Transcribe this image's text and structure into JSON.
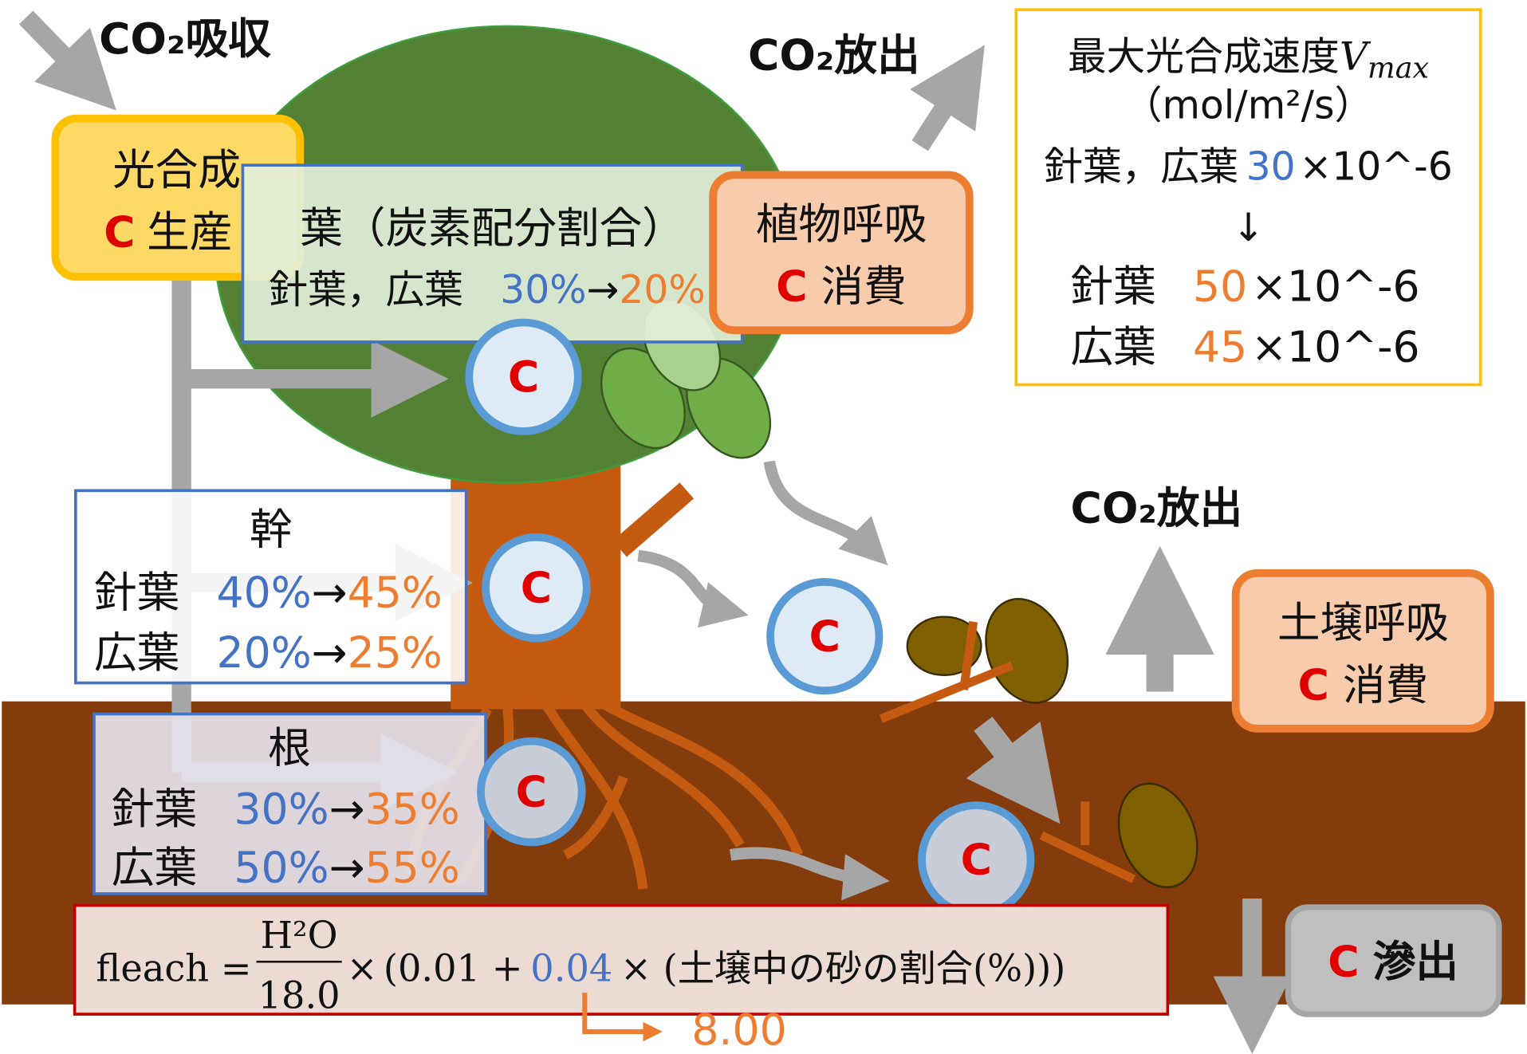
{
  "co2_absorb": "CO₂吸収",
  "co2_release_plant": "CO₂放出",
  "co2_release_soil": "CO₂放出",
  "photosynthesis": {
    "title": "光合成",
    "c": "C",
    "label": "生産"
  },
  "plant_respiration": {
    "title": "植物呼吸",
    "c": "C",
    "label": "消費"
  },
  "soil_respiration": {
    "title": "土壌呼吸",
    "c": "C",
    "label": "消費"
  },
  "leaching": {
    "c": "C",
    "label": "滲出"
  },
  "leaf_box": {
    "title": "葉（炭素配分割合）",
    "row": {
      "name": "針葉，広葉",
      "before": "30%",
      "arrow": "→",
      "after": "20%"
    }
  },
  "trunk_box": {
    "title": "幹",
    "rows": [
      {
        "name": "針葉",
        "before": "40%",
        "arrow": "→",
        "after": "45%"
      },
      {
        "name": "広葉",
        "before": "20%",
        "arrow": "→",
        "after": "25%"
      }
    ]
  },
  "root_box": {
    "title": "根",
    "rows": [
      {
        "name": "針葉",
        "before": "30%",
        "arrow": "→",
        "after": "35%"
      },
      {
        "name": "広葉",
        "before": "50%",
        "arrow": "→",
        "after": "55%"
      }
    ]
  },
  "vmax_box": {
    "title": "最大光合成速度",
    "symbol": "V",
    "subscript": "max",
    "unit": "（mol/m²/s）",
    "before": {
      "name": "針葉，広葉",
      "value": "30",
      "scale": "×10^-6"
    },
    "arrow": "↓",
    "after": [
      {
        "name": "針葉",
        "value": "50",
        "scale": "×10^-6"
      },
      {
        "name": "広葉",
        "value": "45",
        "scale": "×10^-6"
      }
    ]
  },
  "carbon_pools": [
    "C",
    "C",
    "C",
    "C",
    "C"
  ],
  "formula": {
    "lhs": "fleach =",
    "numerator": "H²O",
    "denominator": "18.0",
    "times": "×",
    "open": "(0.01 +",
    "coefficient": "0.04",
    "rest": "× (土壌中の砂の割合(%)))",
    "result": "8.00"
  }
}
